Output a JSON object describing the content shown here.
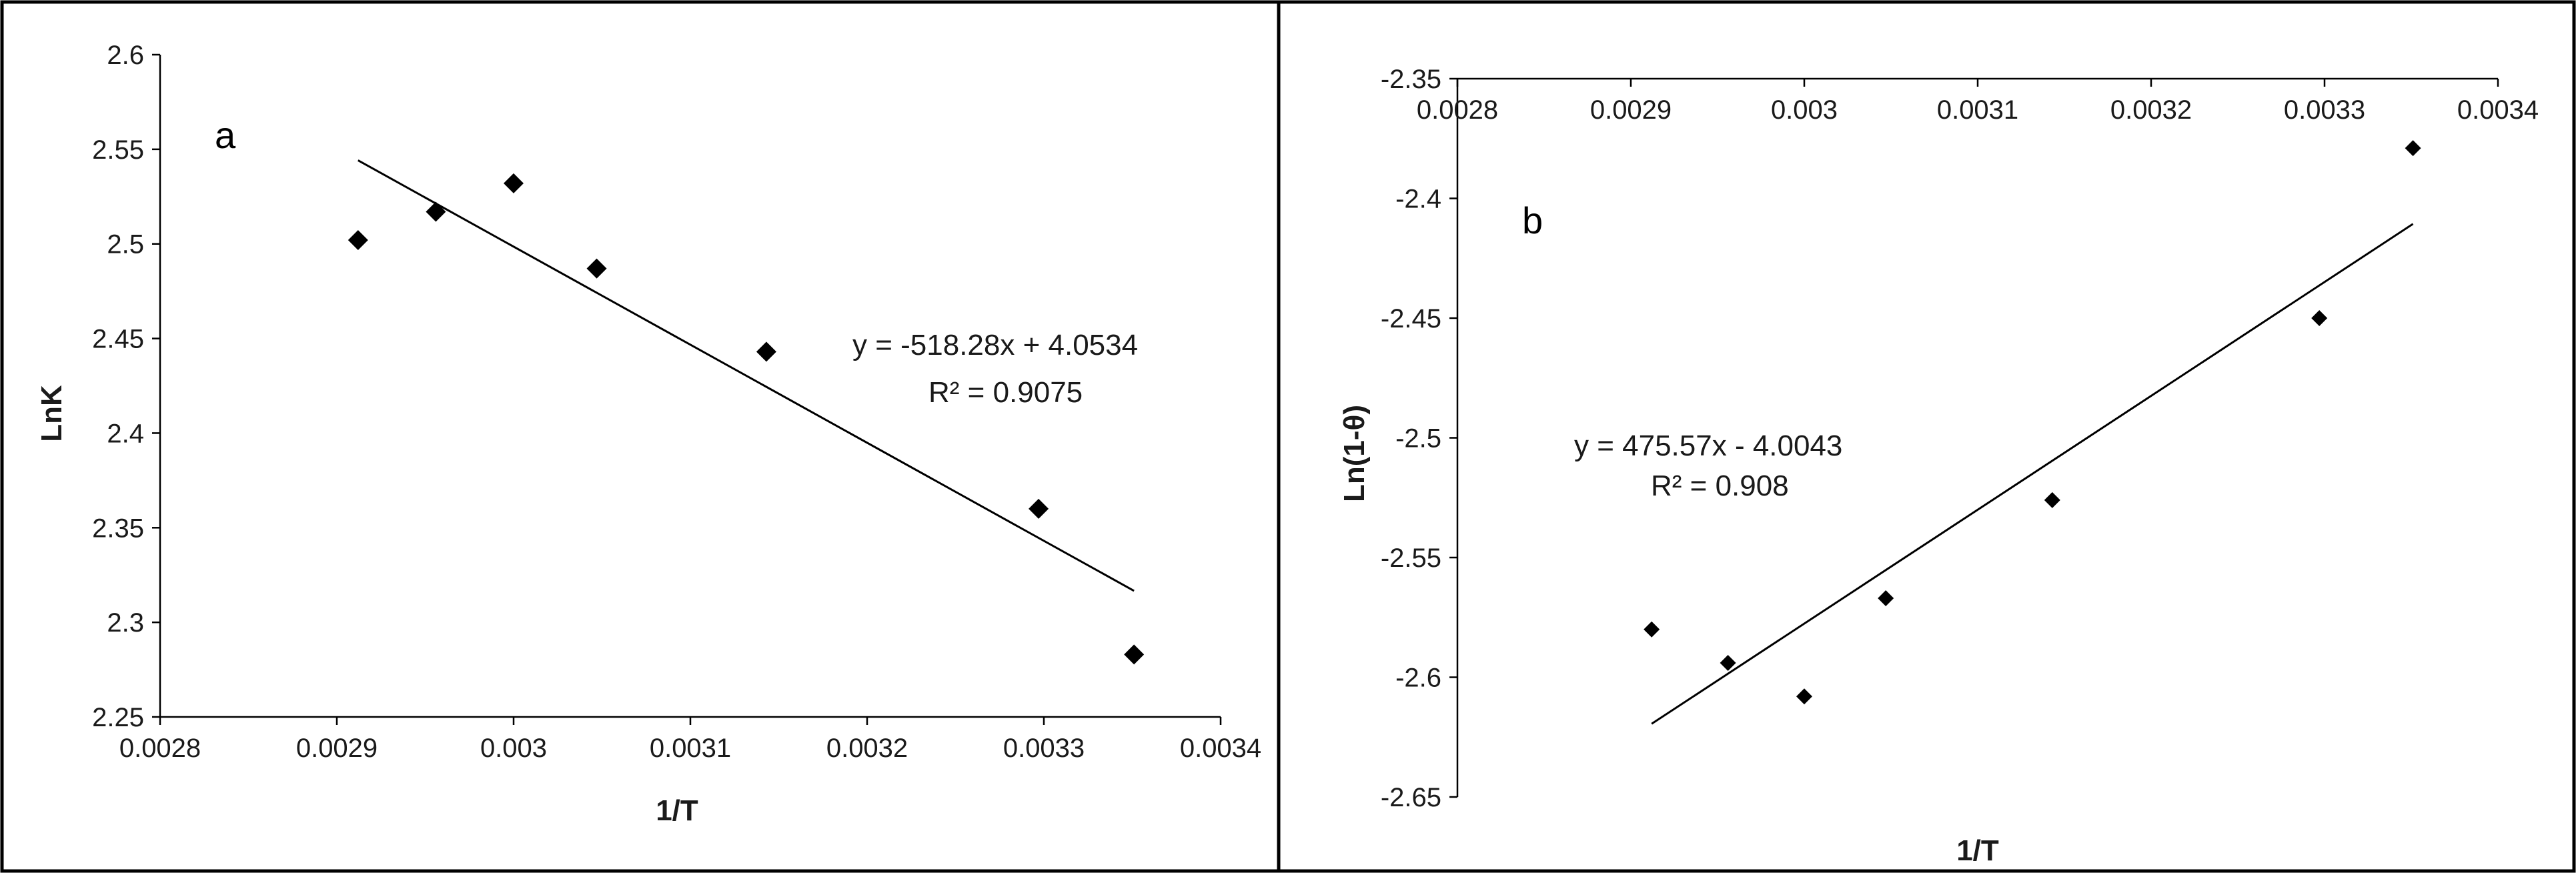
{
  "chart_data": [
    {
      "type": "scatter",
      "panel_label": "a",
      "xlabel": "1/T",
      "ylabel": "LnK",
      "xlim": [
        0.0028,
        0.0034
      ],
      "ylim": [
        2.25,
        2.6
      ],
      "x_ticks": [
        "0.0028",
        "0.0029",
        "0.003",
        "0.0031",
        "0.0032",
        "0.0033",
        "0.0034"
      ],
      "y_ticks": [
        "2.25",
        "2.3",
        "2.35",
        "2.4",
        "2.45",
        "2.5",
        "2.55",
        "2.6"
      ],
      "x_axis_position": "bottom",
      "grid": false,
      "series": [
        {
          "x": [
            0.002912,
            0.002956,
            0.003,
            0.003047,
            0.003143,
            0.003297,
            0.003351
          ],
          "y": [
            2.502,
            2.517,
            2.532,
            2.487,
            2.443,
            2.36,
            2.283
          ]
        }
      ],
      "trendline": {
        "slope": -518.28,
        "intercept": 4.0534,
        "x_range": [
          0.002912,
          0.003351
        ]
      },
      "equation": "y = -518.28x + 4.0534",
      "r_squared": "R² = 0.9075"
    },
    {
      "type": "scatter",
      "panel_label": "b",
      "xlabel": "1/T",
      "ylabel": "Ln(1-θ)",
      "xlim": [
        0.0028,
        0.0034
      ],
      "ylim": [
        -2.65,
        -2.35
      ],
      "x_ticks": [
        "0.0028",
        "0.0029",
        "0.003",
        "0.0031",
        "0.0032",
        "0.0033",
        "0.0034"
      ],
      "y_ticks": [
        "-2.35",
        "-2.4",
        "-2.45",
        "-2.5",
        "-2.55",
        "-2.6",
        "-2.65"
      ],
      "x_axis_position": "top",
      "grid": false,
      "series": [
        {
          "x": [
            0.002912,
            0.002956,
            0.003,
            0.003047,
            0.003143,
            0.003297,
            0.003351
          ],
          "y": [
            -2.58,
            -2.594,
            -2.608,
            -2.567,
            -2.526,
            -2.45,
            -2.379
          ]
        }
      ],
      "trendline": {
        "slope": 475.57,
        "intercept": -4.0043,
        "x_range": [
          0.002912,
          0.003351
        ]
      },
      "equation": "y = 475.57x - 4.0043",
      "r_squared": "R² = 0.908"
    }
  ]
}
